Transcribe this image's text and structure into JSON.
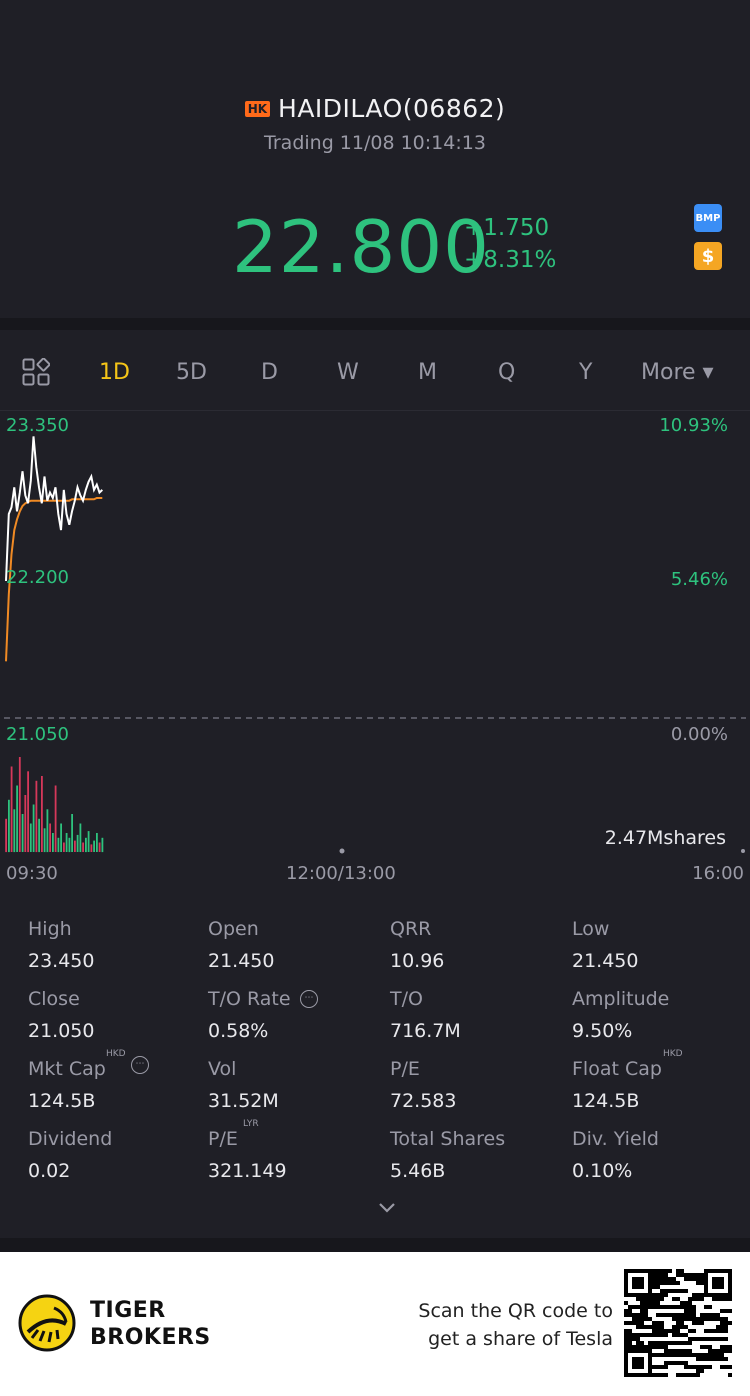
{
  "header": {
    "market_badge": "HK",
    "title": "HAIDILAO(06862)",
    "status": "Trading 11/08 10:14:13",
    "price": "22.800",
    "change": "+1.750",
    "change_pct": "+8.31%",
    "side_icons": [
      {
        "name": "bmp-icon",
        "label": "BMP",
        "color": "#3b8ef5"
      },
      {
        "name": "dollar-icon",
        "label": "$",
        "color": "#f5a623"
      }
    ]
  },
  "tabs": {
    "layout_icon": "grid-layout-icon",
    "items": [
      "1D",
      "5D",
      "D",
      "W",
      "M",
      "Q",
      "Y"
    ],
    "active": "1D",
    "more_label": "More ▾"
  },
  "chart_data": {
    "type": "line",
    "y_left_labels": [
      "23.350",
      "22.200",
      "21.050"
    ],
    "y_right_labels": [
      "10.93%",
      "5.46%",
      "0.00%"
    ],
    "ylim": [
      21.05,
      23.35
    ],
    "x_labels": [
      "09:30",
      "12:00/13:00",
      "16:00"
    ],
    "series": [
      {
        "kind": "price",
        "color": "#ffffff",
        "values": [
          22.2,
          22.7,
          22.75,
          22.9,
          22.72,
          22.86,
          23.02,
          22.84,
          22.78,
          22.95,
          23.28,
          23.05,
          22.9,
          22.78,
          22.98,
          22.8,
          22.86,
          22.82,
          22.9,
          22.7,
          22.58,
          22.88,
          22.7,
          22.62,
          22.72,
          22.8,
          22.9,
          22.84,
          22.8,
          22.88,
          22.94,
          22.98,
          22.88,
          22.92,
          22.86,
          22.88
        ]
      },
      {
        "kind": "average",
        "color": "#f08a24",
        "values": [
          21.6,
          22.1,
          22.4,
          22.58,
          22.66,
          22.72,
          22.76,
          22.78,
          22.79,
          22.8,
          22.8,
          22.8,
          22.8,
          22.8,
          22.8,
          22.8,
          22.8,
          22.8,
          22.8,
          22.8,
          22.8,
          22.8,
          22.8,
          22.8,
          22.81,
          22.81,
          22.81,
          22.81,
          22.81,
          22.81,
          22.81,
          22.81,
          22.81,
          22.82,
          22.82,
          22.82
        ]
      }
    ],
    "volume_label": "2.47Mshares",
    "volume": [
      0.35,
      0.55,
      0.9,
      0.45,
      0.7,
      1.0,
      0.4,
      0.6,
      0.85,
      0.3,
      0.5,
      0.75,
      0.35,
      0.8,
      0.25,
      0.45,
      0.3,
      0.2,
      0.7,
      0.15,
      0.3,
      0.1,
      0.2,
      0.15,
      0.4,
      0.12,
      0.18,
      0.3,
      0.1,
      0.15,
      0.22,
      0.08,
      0.12,
      0.2,
      0.1,
      0.15
    ],
    "volume_colors": [
      "#d6385a",
      "#2ec27e",
      "#d6385a",
      "#2ec27e",
      "#2ec27e",
      "#d6385a",
      "#2ec27e",
      "#d6385a",
      "#d6385a",
      "#2ec27e",
      "#2ec27e",
      "#d6385a",
      "#2ec27e",
      "#d6385a",
      "#2ec27e",
      "#2ec27e",
      "#d6385a",
      "#2ec27e",
      "#d6385a",
      "#2ec27e",
      "#2ec27e",
      "#d6385a",
      "#2ec27e",
      "#2ec27e",
      "#2ec27e",
      "#d6385a",
      "#2ec27e",
      "#2ec27e",
      "#d6385a",
      "#2ec27e",
      "#2ec27e",
      "#d6385a",
      "#2ec27e",
      "#2ec27e",
      "#d6385a",
      "#2ec27e"
    ],
    "up_color": "#2ec27e",
    "down_color": "#d6385a"
  },
  "stats": {
    "rows": [
      [
        {
          "label": "High",
          "value": "23.450"
        },
        {
          "label": "Open",
          "value": "21.450"
        },
        {
          "label": "QRR",
          "value": "10.96"
        },
        {
          "label": "Low",
          "value": "21.450"
        }
      ],
      [
        {
          "label": "Close",
          "value": "21.050"
        },
        {
          "label": "T/O Rate",
          "value": "0.58%"
        },
        {
          "label": "T/O",
          "value": "716.7M"
        },
        {
          "label": "Amplitude",
          "value": "9.50%"
        }
      ],
      [
        {
          "label": "Mkt Cap",
          "value": "124.5B",
          "sup": "HKD"
        },
        {
          "label": "Vol",
          "value": "31.52M"
        },
        {
          "label": "P/E",
          "value": "72.583"
        },
        {
          "label": "Float Cap",
          "value": "124.5B",
          "sup": "HKD"
        }
      ],
      [
        {
          "label": "Dividend",
          "value": "0.02"
        },
        {
          "label": "P/E",
          "value": "321.149",
          "sup": "LYR"
        },
        {
          "label": "Total Shares",
          "value": "5.46B"
        },
        {
          "label": "Div. Yield",
          "value": "0.10%"
        }
      ]
    ],
    "expand_icon": "chevron-down-icon"
  },
  "footer": {
    "brand_line1": "TIGER",
    "brand_line2": "BROKERS",
    "promo_line1": "Scan the QR code to",
    "promo_line2": "get a share of Tesla",
    "logo_icon": "tiger-logo-icon",
    "qr_icon": "qr-code-icon"
  }
}
